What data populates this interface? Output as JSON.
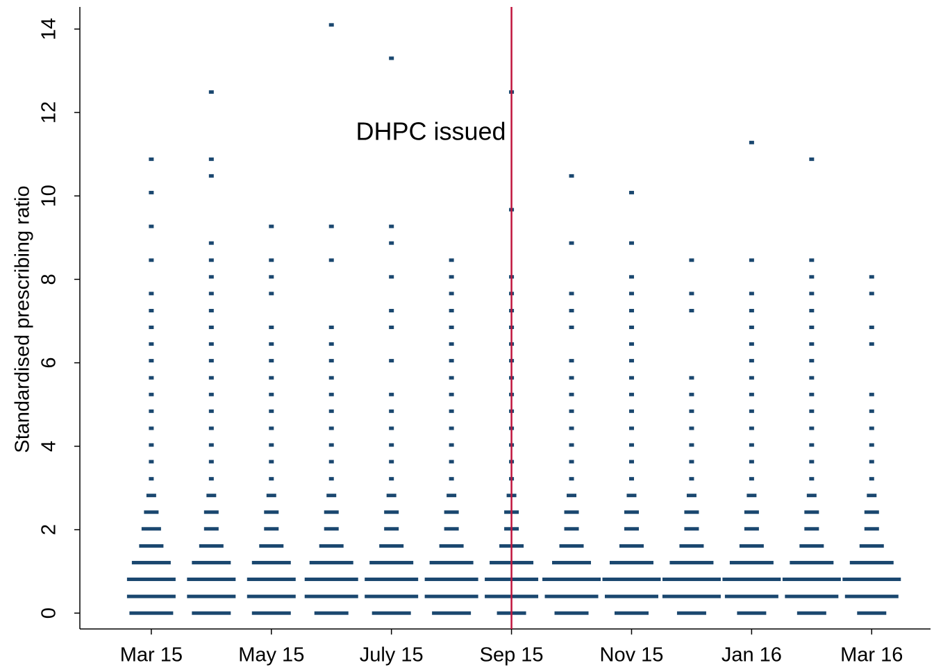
{
  "chart_data": {
    "type": "dotplot",
    "y_label": "Standardised prescribing ratio",
    "x": [
      0,
      1,
      2,
      3,
      4,
      5,
      6,
      7,
      8,
      9,
      10,
      11,
      12
    ],
    "xlim": [
      -1.19,
      12.98
    ],
    "xticks": [
      {
        "value": 0,
        "label": "Mar 15"
      },
      {
        "value": 2,
        "label": "May 15"
      },
      {
        "value": 4,
        "label": "July 15"
      },
      {
        "value": 6,
        "label": "Sep 15"
      },
      {
        "value": 8,
        "label": "Nov 15"
      },
      {
        "value": 10,
        "label": "Jan 16"
      },
      {
        "value": 12,
        "label": "Mar 16"
      }
    ],
    "ylim": [
      -0.38,
      14.53
    ],
    "yticks": [
      0,
      2,
      4,
      6,
      8,
      10,
      12,
      14
    ],
    "color": "#1a476f",
    "bins": [
      0,
      0.4,
      0.81,
      1.21,
      1.61,
      2.02,
      2.42,
      2.82,
      3.22,
      3.63,
      4.03,
      4.43,
      4.84,
      5.24,
      5.64,
      6.05,
      6.45,
      6.85,
      7.25,
      7.66,
      8.06,
      8.46,
      8.87,
      9.27,
      9.67,
      10.08,
      10.48,
      10.88,
      11.28,
      11.69,
      12.09,
      12.49,
      12.9,
      13.3,
      13.7,
      14.1
    ],
    "counts": [
      [
        9,
        10,
        10,
        8,
        5,
        4,
        3,
        2,
        1,
        1,
        1,
        1,
        1,
        1,
        1,
        1,
        1,
        1,
        1,
        1,
        0,
        1,
        0,
        1,
        0,
        1,
        0,
        1,
        0,
        0,
        0,
        0,
        0,
        0,
        0,
        0
      ],
      [
        8,
        10,
        10,
        8,
        5,
        3,
        3,
        2,
        1,
        1,
        1,
        1,
        1,
        1,
        1,
        1,
        1,
        1,
        1,
        1,
        1,
        1,
        1,
        0,
        0,
        0,
        1,
        1,
        0,
        0,
        0,
        1,
        0,
        0,
        0,
        0
      ],
      [
        8,
        10,
        10,
        8,
        5,
        3,
        3,
        2,
        1,
        1,
        1,
        1,
        1,
        1,
        1,
        1,
        1,
        1,
        0,
        1,
        1,
        1,
        0,
        1,
        0,
        0,
        0,
        0,
        0,
        0,
        0,
        0,
        0,
        0,
        0,
        0
      ],
      [
        7,
        11,
        11,
        9,
        5,
        3,
        3,
        2,
        1,
        1,
        1,
        1,
        1,
        1,
        1,
        1,
        1,
        1,
        0,
        0,
        0,
        1,
        0,
        1,
        0,
        0,
        0,
        0,
        0,
        0,
        0,
        0,
        0,
        0,
        0,
        1
      ],
      [
        8,
        11,
        11,
        9,
        5,
        3,
        3,
        2,
        1,
        1,
        1,
        1,
        1,
        1,
        0,
        1,
        0,
        1,
        1,
        0,
        1,
        0,
        1,
        1,
        0,
        0,
        0,
        0,
        0,
        0,
        0,
        0,
        0,
        1,
        0,
        0
      ],
      [
        8,
        11,
        11,
        9,
        5,
        3,
        3,
        2,
        1,
        1,
        1,
        1,
        1,
        1,
        1,
        1,
        1,
        1,
        1,
        1,
        1,
        1,
        0,
        0,
        0,
        0,
        0,
        0,
        0,
        0,
        0,
        0,
        0,
        0,
        0,
        0
      ],
      [
        6,
        11,
        11,
        9,
        5,
        3,
        3,
        2,
        1,
        1,
        1,
        1,
        1,
        1,
        1,
        1,
        1,
        1,
        1,
        1,
        1,
        0,
        0,
        0,
        1,
        0,
        0,
        0,
        0,
        0,
        0,
        1,
        0,
        0,
        0,
        0
      ],
      [
        7,
        11,
        12,
        8,
        5,
        3,
        3,
        2,
        1,
        1,
        1,
        1,
        1,
        1,
        1,
        1,
        0,
        1,
        1,
        1,
        0,
        0,
        1,
        0,
        0,
        0,
        1,
        0,
        0,
        0,
        0,
        0,
        0,
        0,
        0,
        0
      ],
      [
        7,
        11,
        12,
        9,
        5,
        3,
        3,
        2,
        1,
        1,
        1,
        1,
        1,
        1,
        1,
        1,
        1,
        1,
        1,
        1,
        1,
        0,
        1,
        0,
        0,
        1,
        0,
        0,
        0,
        0,
        0,
        0,
        0,
        0,
        0,
        0
      ],
      [
        6,
        12,
        12,
        9,
        5,
        3,
        3,
        2,
        1,
        1,
        1,
        1,
        1,
        1,
        1,
        0,
        0,
        0,
        1,
        1,
        0,
        1,
        0,
        0,
        0,
        0,
        0,
        0,
        0,
        0,
        0,
        0,
        0,
        0,
        0,
        0
      ],
      [
        6,
        11,
        12,
        9,
        5,
        3,
        3,
        2,
        1,
        1,
        1,
        1,
        1,
        1,
        1,
        1,
        1,
        1,
        1,
        1,
        0,
        1,
        0,
        0,
        0,
        0,
        0,
        0,
        1,
        0,
        0,
        0,
        0,
        0,
        0,
        0
      ],
      [
        6,
        11,
        12,
        9,
        5,
        3,
        3,
        2,
        1,
        1,
        1,
        1,
        1,
        1,
        1,
        1,
        1,
        1,
        1,
        1,
        1,
        1,
        0,
        0,
        0,
        0,
        0,
        1,
        0,
        0,
        0,
        0,
        0,
        0,
        0,
        0
      ],
      [
        6,
        11,
        12,
        9,
        5,
        3,
        3,
        2,
        1,
        1,
        1,
        1,
        1,
        1,
        0,
        0,
        1,
        1,
        0,
        1,
        1,
        0,
        0,
        0,
        0,
        0,
        0,
        0,
        0,
        0,
        0,
        0,
        0,
        0,
        0,
        0
      ]
    ],
    "vline": {
      "x": 6,
      "color": "#c0143c"
    },
    "annotation": {
      "text": "DHPC issued",
      "x": 6,
      "y": 11.5
    }
  }
}
